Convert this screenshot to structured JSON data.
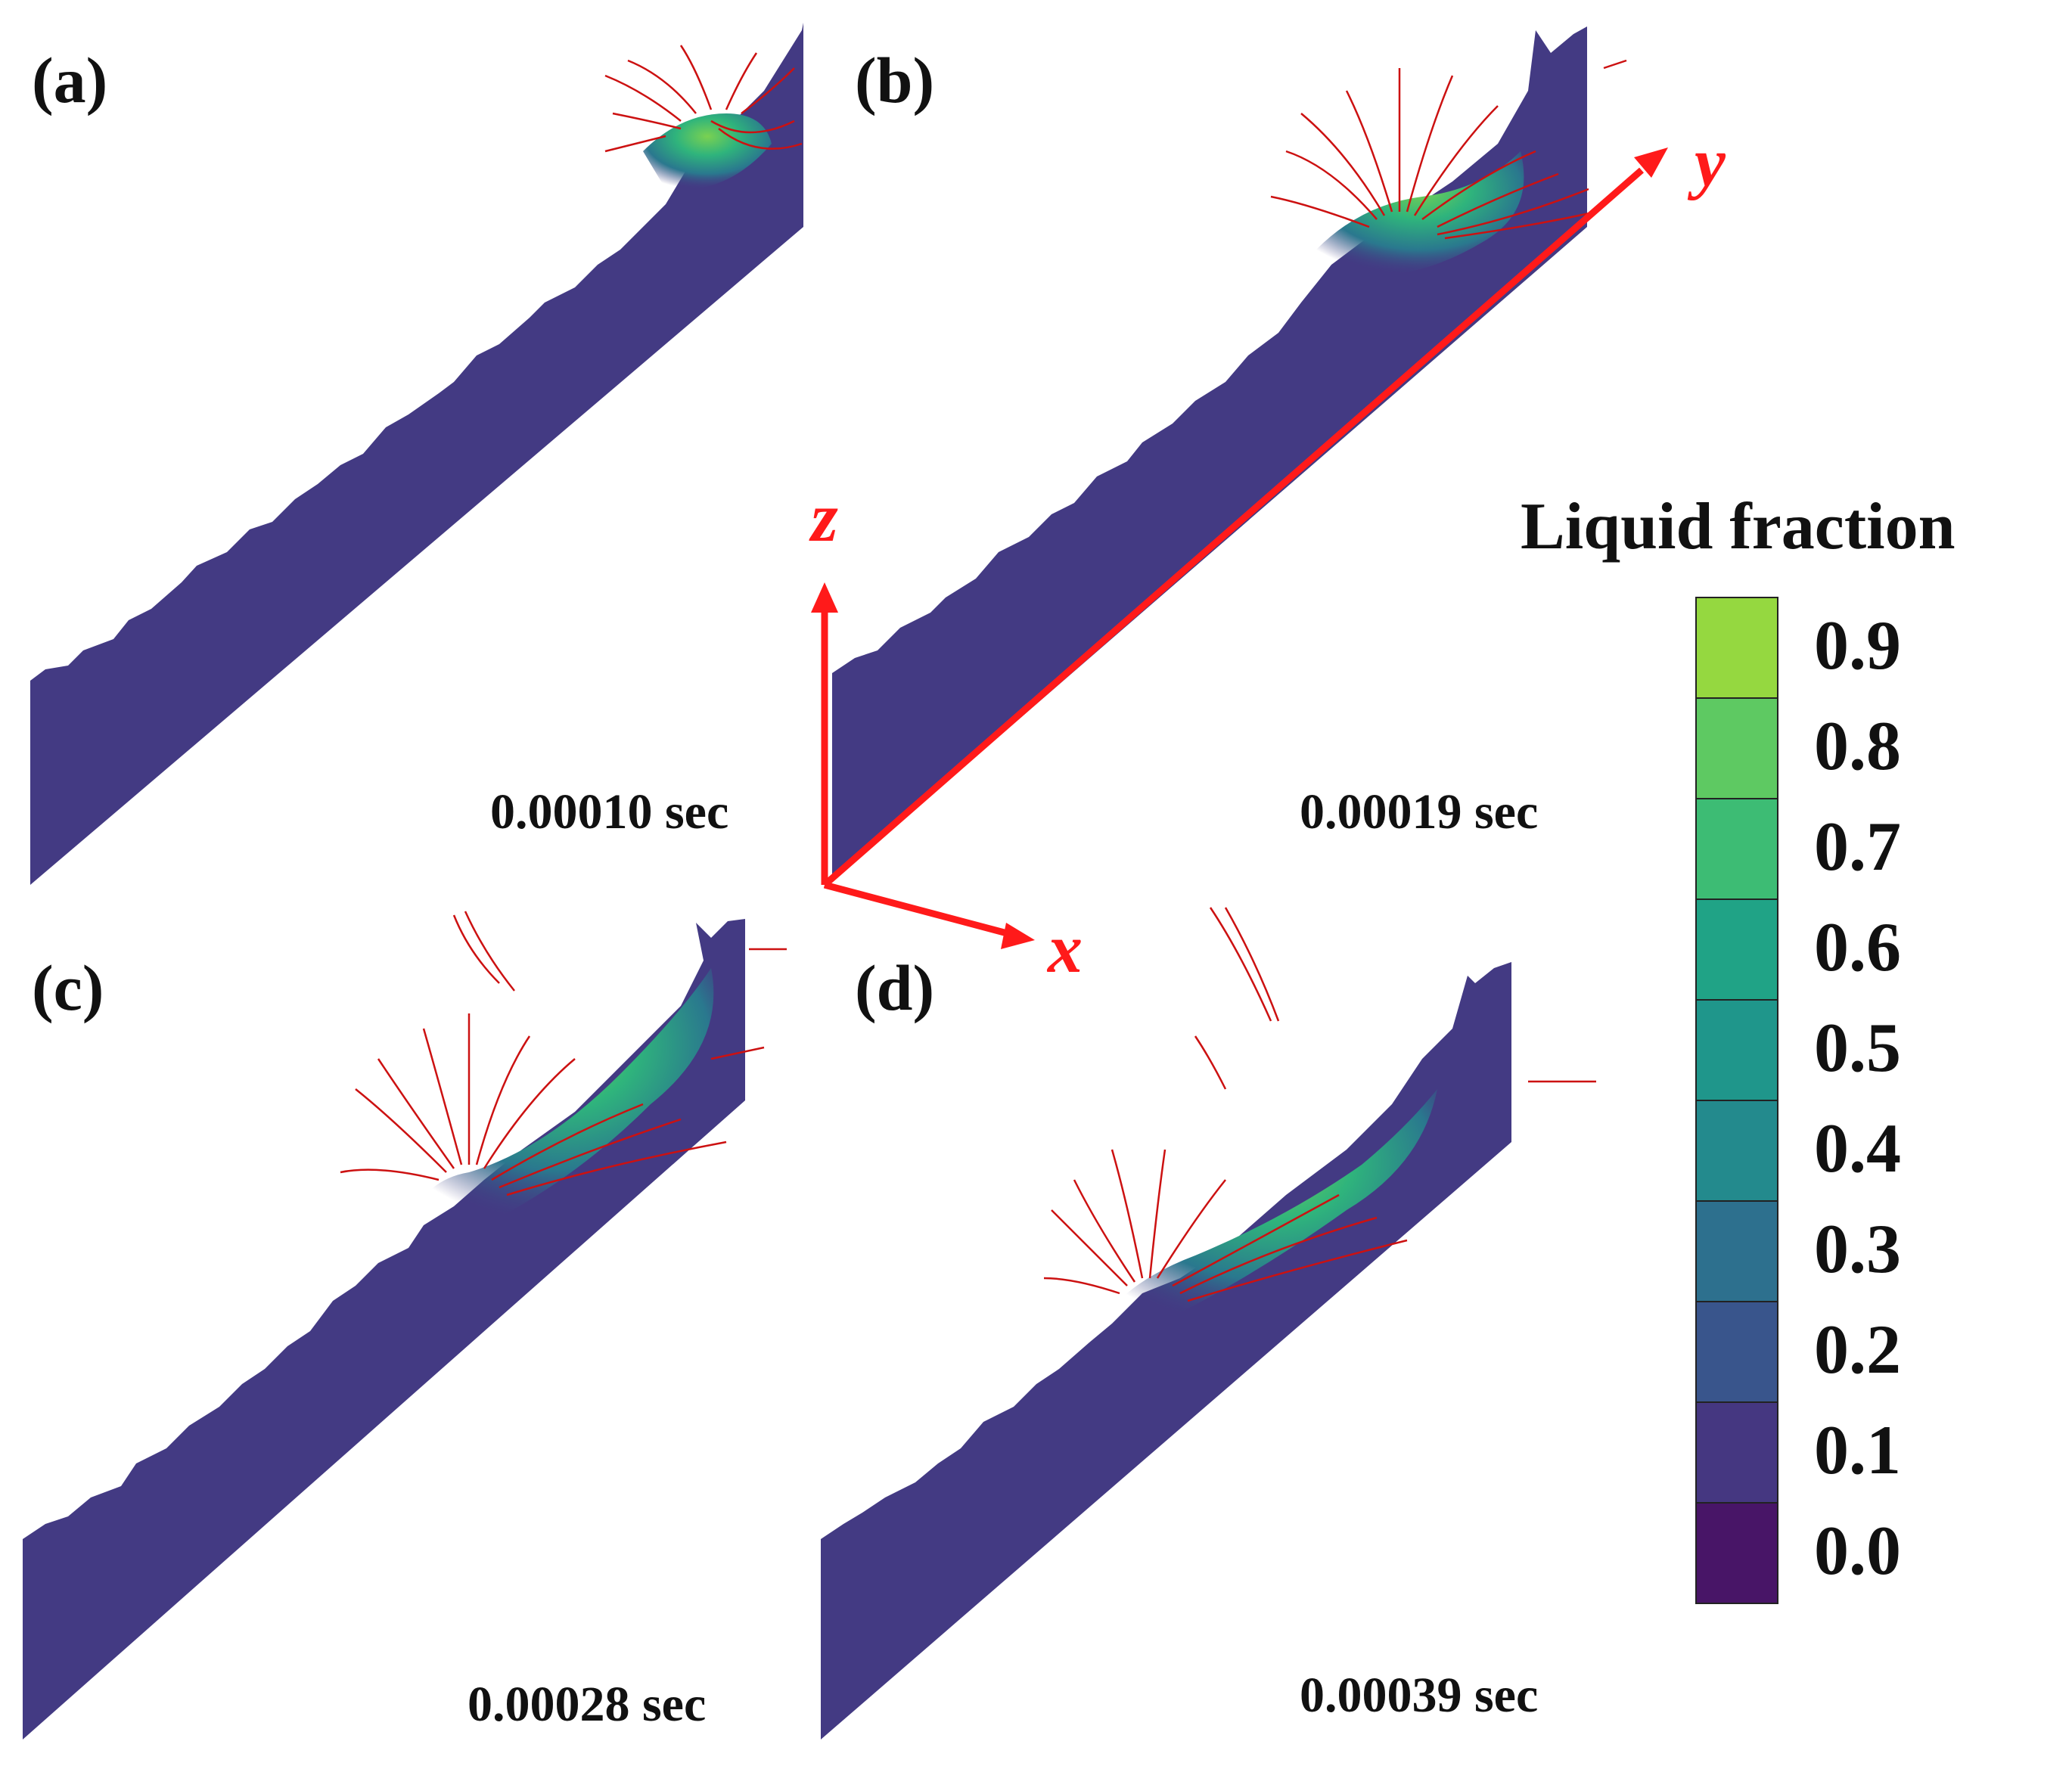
{
  "panels": [
    {
      "id": "a",
      "label": "(a)",
      "time": "0.00010 sec"
    },
    {
      "id": "b",
      "label": "(b)",
      "time": "0.00019 sec"
    },
    {
      "id": "c",
      "label": "(c)",
      "time": "0.00028 sec"
    },
    {
      "id": "d",
      "label": "(d)",
      "time": "0.00039 sec"
    }
  ],
  "axes": {
    "x": "x",
    "y": "y",
    "z": "z",
    "color": "#ff1a1a"
  },
  "colorbar": {
    "title": "Liquid fraction",
    "ticks": [
      "0.9",
      "0.8",
      "0.7",
      "0.6",
      "0.5",
      "0.4",
      "0.3",
      "0.2",
      "0.1",
      "0.0"
    ],
    "colors": [
      "#95d840",
      "#5ec962",
      "#3dbc74",
      "#20a386",
      "#1f968b",
      "#238a8d",
      "#2d708e",
      "#39558c",
      "#453781",
      "#481567"
    ]
  },
  "colors": {
    "substrate": "#433a83",
    "streamline": "#cc1111"
  }
}
